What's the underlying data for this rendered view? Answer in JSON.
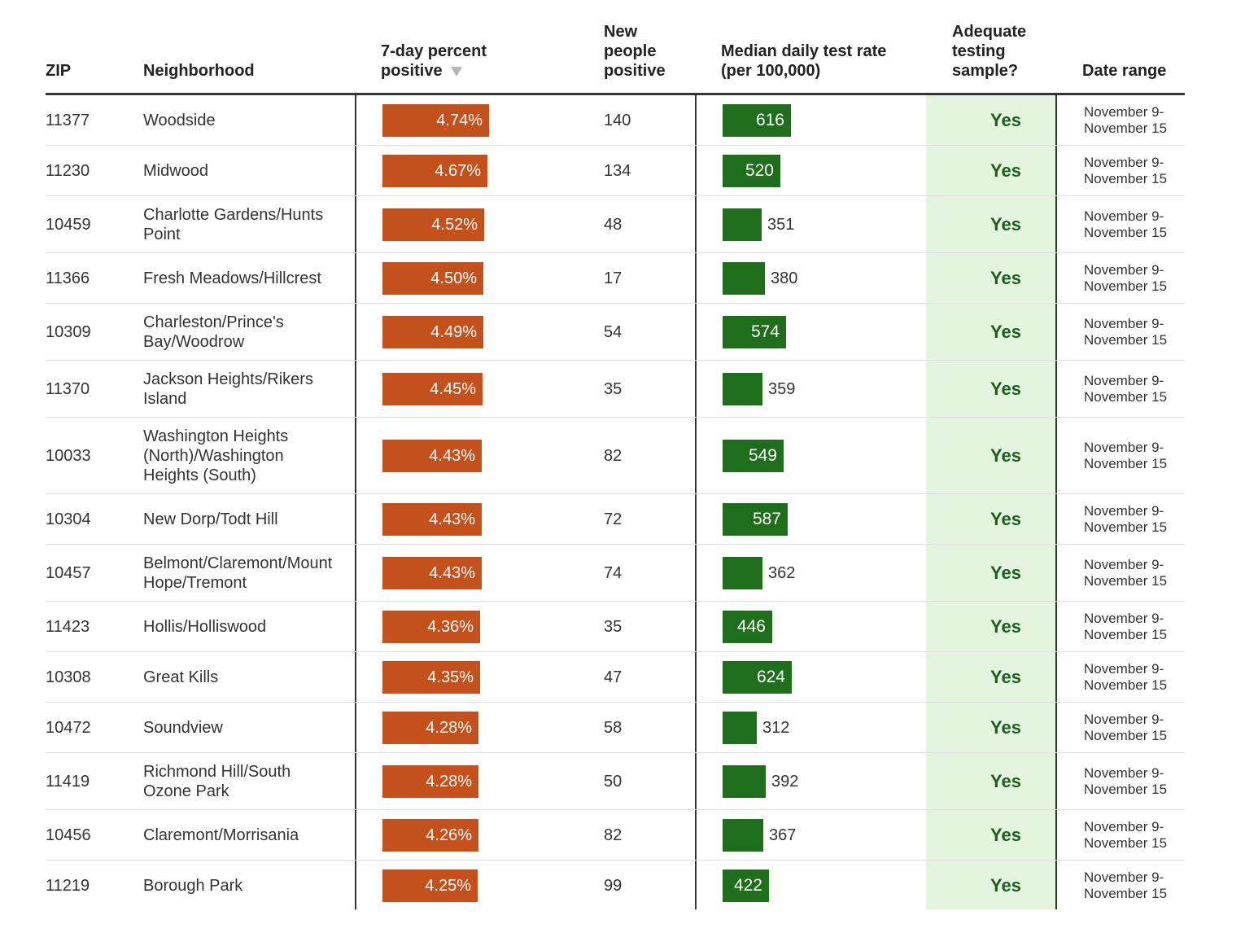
{
  "chart_data": {
    "type": "table",
    "columns": {
      "zip": "ZIP",
      "neighborhood": "Neighborhood",
      "pct_line1": "7-day percent",
      "pct_line2": "positive",
      "newpos_line1": "New",
      "newpos_line2": "people",
      "newpos_line3": "positive",
      "rate_line1": "Median daily test rate",
      "rate_line2": "(per 100,000)",
      "adequate_line1": "Adequate",
      "adequate_line2": "testing",
      "adequate_line3": "sample?",
      "date_range": "Date range"
    },
    "pct_scale_max": 5.0,
    "rate_scale_max": 700,
    "rows": [
      {
        "zip": "11377",
        "neighborhood": "Woodside",
        "pct": 4.74,
        "pct_label": "4.74%",
        "new_positive": "140",
        "rate": 616,
        "rate_label": "616",
        "adequate": "Yes",
        "date_line1": "November 9-",
        "date_line2": "November 15"
      },
      {
        "zip": "11230",
        "neighborhood": "Midwood",
        "pct": 4.67,
        "pct_label": "4.67%",
        "new_positive": "134",
        "rate": 520,
        "rate_label": "520",
        "adequate": "Yes",
        "date_line1": "November 9-",
        "date_line2": "November 15"
      },
      {
        "zip": "10459",
        "neighborhood": "Charlotte Gardens/Hunts Point",
        "pct": 4.52,
        "pct_label": "4.52%",
        "new_positive": "48",
        "rate": 351,
        "rate_label": "351",
        "adequate": "Yes",
        "date_line1": "November 9-",
        "date_line2": "November 15"
      },
      {
        "zip": "11366",
        "neighborhood": "Fresh Meadows/Hillcrest",
        "pct": 4.5,
        "pct_label": "4.50%",
        "new_positive": "17",
        "rate": 380,
        "rate_label": "380",
        "adequate": "Yes",
        "date_line1": "November 9-",
        "date_line2": "November 15"
      },
      {
        "zip": "10309",
        "neighborhood": "Charleston/Prince's Bay/Woodrow",
        "pct": 4.49,
        "pct_label": "4.49%",
        "new_positive": "54",
        "rate": 574,
        "rate_label": "574",
        "adequate": "Yes",
        "date_line1": "November 9-",
        "date_line2": "November 15"
      },
      {
        "zip": "11370",
        "neighborhood": "Jackson Heights/Rikers Island",
        "pct": 4.45,
        "pct_label": "4.45%",
        "new_positive": "35",
        "rate": 359,
        "rate_label": "359",
        "adequate": "Yes",
        "date_line1": "November 9-",
        "date_line2": "November 15"
      },
      {
        "zip": "10033",
        "neighborhood": "Washington Heights (North)/Washington Heights (South)",
        "pct": 4.43,
        "pct_label": "4.43%",
        "new_positive": "82",
        "rate": 549,
        "rate_label": "549",
        "adequate": "Yes",
        "date_line1": "November 9-",
        "date_line2": "November 15"
      },
      {
        "zip": "10304",
        "neighborhood": "New Dorp/Todt Hill",
        "pct": 4.43,
        "pct_label": "4.43%",
        "new_positive": "72",
        "rate": 587,
        "rate_label": "587",
        "adequate": "Yes",
        "date_line1": "November 9-",
        "date_line2": "November 15"
      },
      {
        "zip": "10457",
        "neighborhood": "Belmont/Claremont/Mount Hope/Tremont",
        "pct": 4.43,
        "pct_label": "4.43%",
        "new_positive": "74",
        "rate": 362,
        "rate_label": "362",
        "adequate": "Yes",
        "date_line1": "November 9-",
        "date_line2": "November 15"
      },
      {
        "zip": "11423",
        "neighborhood": "Hollis/Holliswood",
        "pct": 4.36,
        "pct_label": "4.36%",
        "new_positive": "35",
        "rate": 446,
        "rate_label": "446",
        "adequate": "Yes",
        "date_line1": "November 9-",
        "date_line2": "November 15"
      },
      {
        "zip": "10308",
        "neighborhood": "Great Kills",
        "pct": 4.35,
        "pct_label": "4.35%",
        "new_positive": "47",
        "rate": 624,
        "rate_label": "624",
        "adequate": "Yes",
        "date_line1": "November 9-",
        "date_line2": "November 15"
      },
      {
        "zip": "10472",
        "neighborhood": "Soundview",
        "pct": 4.28,
        "pct_label": "4.28%",
        "new_positive": "58",
        "rate": 312,
        "rate_label": "312",
        "adequate": "Yes",
        "date_line1": "November 9-",
        "date_line2": "November 15"
      },
      {
        "zip": "11419",
        "neighborhood": "Richmond Hill/South Ozone Park",
        "pct": 4.28,
        "pct_label": "4.28%",
        "new_positive": "50",
        "rate": 392,
        "rate_label": "392",
        "adequate": "Yes",
        "date_line1": "November 9-",
        "date_line2": "November 15"
      },
      {
        "zip": "10456",
        "neighborhood": "Claremont/Morrisania",
        "pct": 4.26,
        "pct_label": "4.26%",
        "new_positive": "82",
        "rate": 367,
        "rate_label": "367",
        "adequate": "Yes",
        "date_line1": "November 9-",
        "date_line2": "November 15"
      },
      {
        "zip": "11219",
        "neighborhood": "Borough Park",
        "pct": 4.25,
        "pct_label": "4.25%",
        "new_positive": "99",
        "rate": 422,
        "rate_label": "422",
        "adequate": "Yes",
        "date_line1": "November 9-",
        "date_line2": "November 15"
      }
    ]
  },
  "colors": {
    "pct_bar": "#c4501b",
    "rate_bar": "#1e6e1c",
    "adequate_bg": "#e3f5df",
    "adequate_text": "#1e5e1d"
  },
  "icons": {
    "sort": "sort-down-triangle-icon"
  }
}
